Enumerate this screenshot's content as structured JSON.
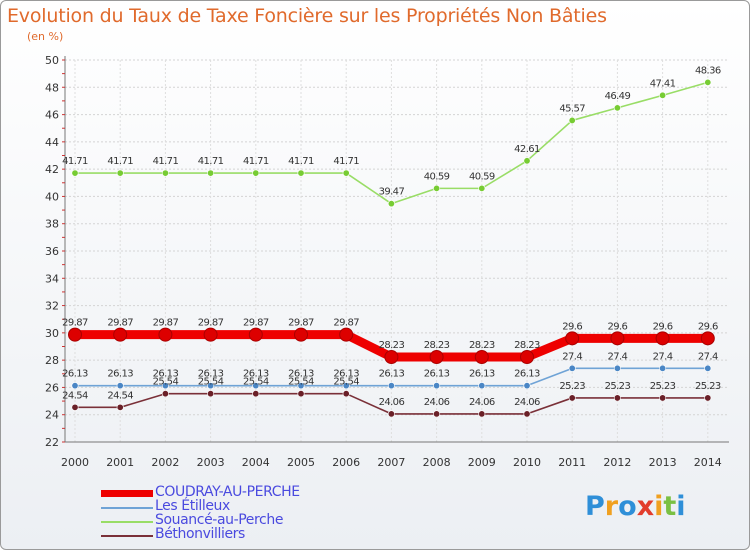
{
  "chart_data": {
    "type": "line",
    "title": "Evolution du Taux de Taxe Foncière sur les Propriétés Non Bâties",
    "subtitle": "(en %)",
    "xlabel": "",
    "ylabel": "",
    "ylim": [
      22,
      50
    ],
    "yticks": [
      22,
      24,
      26,
      28,
      30,
      32,
      34,
      36,
      38,
      40,
      42,
      44,
      46,
      48,
      50
    ],
    "categories": [
      "2000",
      "2001",
      "2002",
      "2003",
      "2004",
      "2005",
      "2006",
      "2007",
      "2008",
      "2009",
      "2010",
      "2011",
      "2012",
      "2013",
      "2014"
    ],
    "grid": true,
    "series": [
      {
        "name": "COUDRAY-AU-PERCHE",
        "color": "#ee0000",
        "markerColor": "#dd0000",
        "thick": true,
        "values": [
          29.87,
          29.87,
          29.87,
          29.87,
          29.87,
          29.87,
          29.87,
          28.23,
          28.23,
          28.23,
          28.23,
          29.6,
          29.6,
          29.6,
          29.6
        ],
        "labels": [
          "29.87",
          "29.87",
          "29.87",
          "29.87",
          "29.87",
          "29.87",
          "29.87",
          "28.23",
          "28.23",
          "28.23",
          "28.23",
          "29.6",
          "29.6",
          "29.6",
          "29.6"
        ]
      },
      {
        "name": "Les Étilleux",
        "color": "#6fa3d6",
        "markerColor": "#4a86c5",
        "thick": false,
        "values": [
          26.13,
          26.13,
          26.13,
          26.13,
          26.13,
          26.13,
          26.13,
          26.13,
          26.13,
          26.13,
          26.13,
          27.4,
          27.4,
          27.4,
          27.4
        ],
        "labels": [
          "26.13",
          "26.13",
          "26.13",
          "26.13",
          "26.13",
          "26.13",
          "26.13",
          "26.13",
          "26.13",
          "26.13",
          "26.13",
          "27.4",
          "27.4",
          "27.4",
          "27.4"
        ]
      },
      {
        "name": "Souancé-au-Perche",
        "color": "#99dd66",
        "markerColor": "#77cc33",
        "thick": false,
        "values": [
          41.71,
          41.71,
          41.71,
          41.71,
          41.71,
          41.71,
          41.71,
          39.47,
          40.59,
          40.59,
          42.61,
          45.57,
          46.49,
          47.41,
          48.36
        ],
        "labels": [
          "41.71",
          "41.71",
          "41.71",
          "41.71",
          "41.71",
          "41.71",
          "41.71",
          "39.47",
          "40.59",
          "40.59",
          "42.61",
          "45.57",
          "46.49",
          "47.41",
          "48.36"
        ]
      },
      {
        "name": "Béthonvilliers",
        "color": "#7a3038",
        "markerColor": "#6a2028",
        "thick": false,
        "values": [
          24.54,
          24.54,
          25.54,
          25.54,
          25.54,
          25.54,
          25.54,
          24.06,
          24.06,
          24.06,
          24.06,
          25.23,
          25.23,
          25.23,
          25.23
        ],
        "labels": [
          "24.54",
          "24.54",
          "25.54",
          "25.54",
          "25.54",
          "25.54",
          "25.54",
          "24.06",
          "24.06",
          "24.06",
          "24.06",
          "25.23",
          "25.23",
          "25.23",
          "25.23"
        ]
      }
    ]
  },
  "logo": {
    "text": "Proxiti"
  }
}
